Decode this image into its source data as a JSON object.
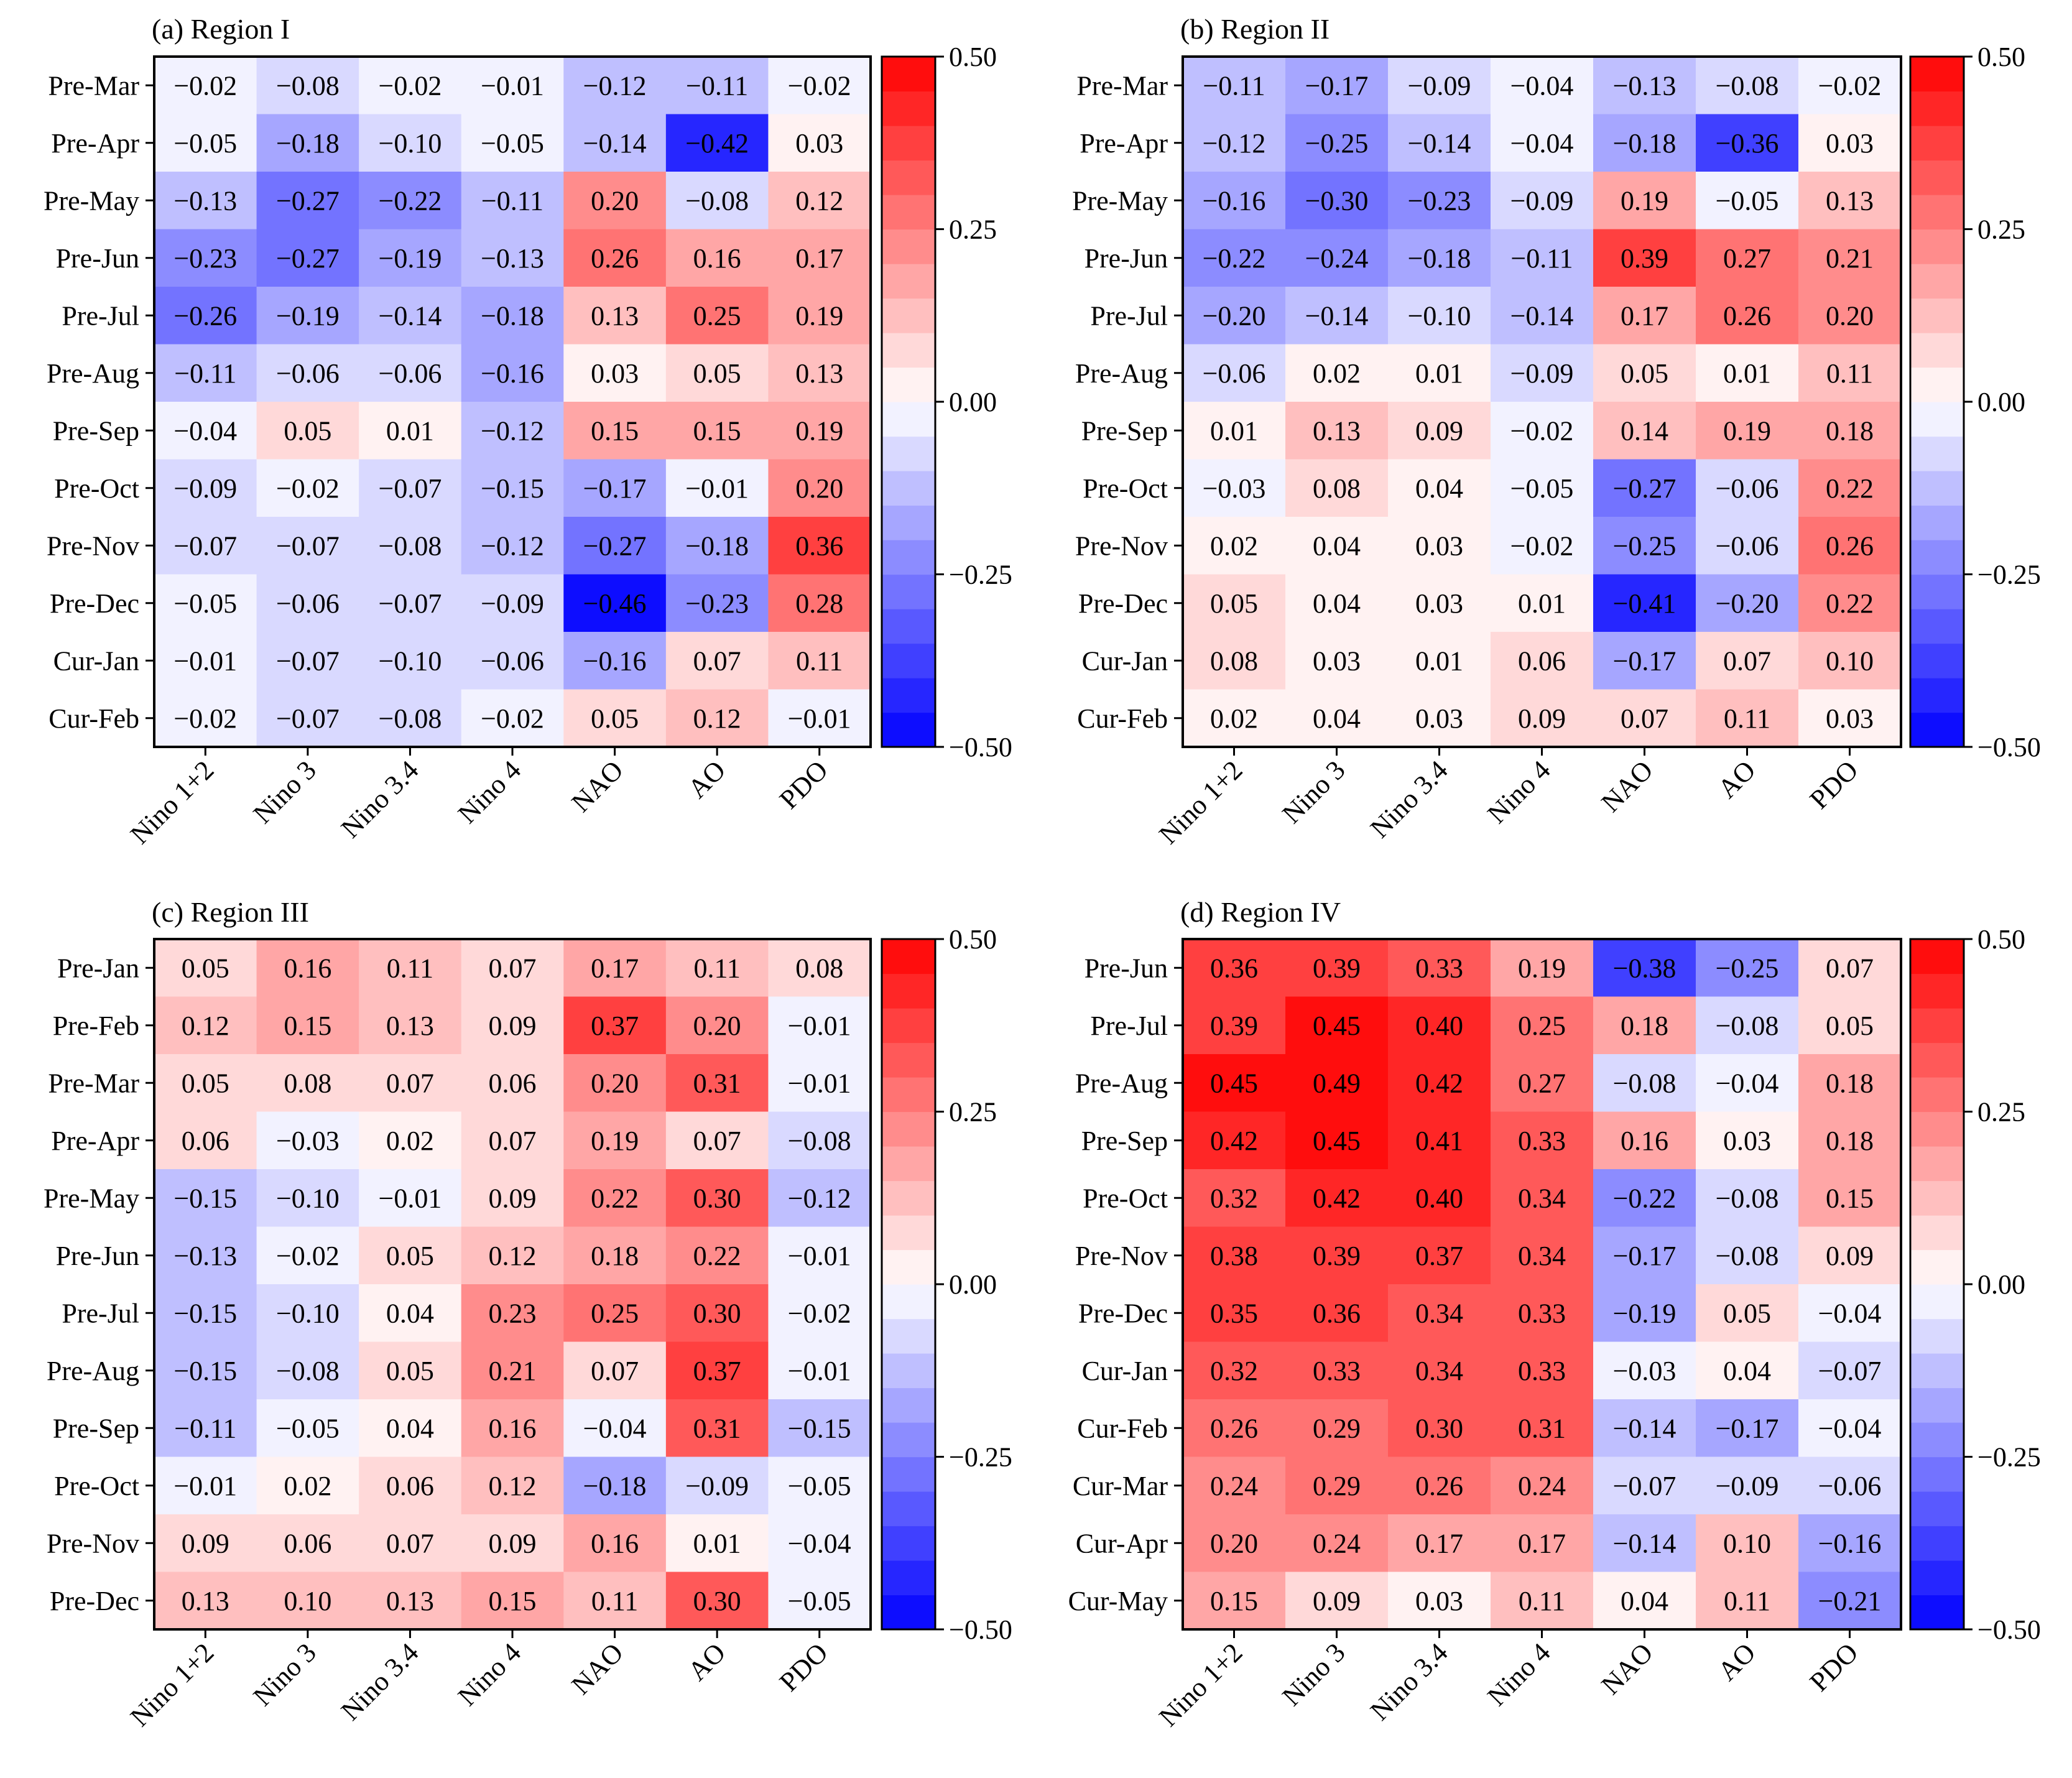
{
  "figure": {
    "columns": [
      "Nino 1+2",
      "Nino 3",
      "Nino 3.4",
      "Nino 4",
      "NAO",
      "AO",
      "PDO"
    ],
    "colorbar": {
      "min": -0.5,
      "max": 0.5,
      "levels": 20,
      "ticks": [
        "0.50",
        "0.25",
        "0.00",
        "−0.25",
        "−0.50"
      ]
    }
  },
  "chart_data": [
    {
      "type": "heatmap",
      "title": "(a) Region I",
      "rows": [
        "Pre-Mar",
        "Pre-Apr",
        "Pre-May",
        "Pre-Jun",
        "Pre-Jul",
        "Pre-Aug",
        "Pre-Sep",
        "Pre-Oct",
        "Pre-Nov",
        "Pre-Dec",
        "Cur-Jan",
        "Cur-Feb"
      ],
      "columns": [
        "Nino 1+2",
        "Nino 3",
        "Nino 3.4",
        "Nino 4",
        "NAO",
        "AO",
        "PDO"
      ],
      "values": [
        [
          -0.02,
          -0.08,
          -0.02,
          -0.01,
          -0.12,
          -0.11,
          -0.02
        ],
        [
          -0.05,
          -0.18,
          -0.1,
          -0.05,
          -0.14,
          -0.42,
          0.03
        ],
        [
          -0.13,
          -0.27,
          -0.22,
          -0.11,
          0.2,
          -0.08,
          0.12
        ],
        [
          -0.23,
          -0.27,
          -0.19,
          -0.13,
          0.26,
          0.16,
          0.17
        ],
        [
          -0.26,
          -0.19,
          -0.14,
          -0.18,
          0.13,
          0.25,
          0.19
        ],
        [
          -0.11,
          -0.06,
          -0.06,
          -0.16,
          0.03,
          0.05,
          0.13
        ],
        [
          -0.04,
          0.05,
          0.01,
          -0.12,
          0.15,
          0.15,
          0.19
        ],
        [
          -0.09,
          -0.02,
          -0.07,
          -0.15,
          -0.17,
          -0.01,
          0.2
        ],
        [
          -0.07,
          -0.07,
          -0.08,
          -0.12,
          -0.27,
          -0.18,
          0.36
        ],
        [
          -0.05,
          -0.06,
          -0.07,
          -0.09,
          -0.46,
          -0.23,
          0.28
        ],
        [
          -0.01,
          -0.07,
          -0.1,
          -0.06,
          -0.16,
          0.07,
          0.11
        ],
        [
          -0.02,
          -0.07,
          -0.08,
          -0.02,
          0.05,
          0.12,
          -0.01
        ]
      ]
    },
    {
      "type": "heatmap",
      "title": "(b) Region II",
      "rows": [
        "Pre-Mar",
        "Pre-Apr",
        "Pre-May",
        "Pre-Jun",
        "Pre-Jul",
        "Pre-Aug",
        "Pre-Sep",
        "Pre-Oct",
        "Pre-Nov",
        "Pre-Dec",
        "Cur-Jan",
        "Cur-Feb"
      ],
      "columns": [
        "Nino 1+2",
        "Nino 3",
        "Nino 3.4",
        "Nino 4",
        "NAO",
        "AO",
        "PDO"
      ],
      "values": [
        [
          -0.11,
          -0.17,
          -0.09,
          -0.04,
          -0.13,
          -0.08,
          -0.02
        ],
        [
          -0.12,
          -0.25,
          -0.14,
          -0.04,
          -0.18,
          -0.36,
          0.03
        ],
        [
          -0.16,
          -0.3,
          -0.23,
          -0.09,
          0.19,
          -0.05,
          0.13
        ],
        [
          -0.22,
          -0.24,
          -0.18,
          -0.11,
          0.39,
          0.27,
          0.21
        ],
        [
          -0.2,
          -0.14,
          -0.1,
          -0.14,
          0.17,
          0.26,
          0.2
        ],
        [
          -0.06,
          0.02,
          0.01,
          -0.09,
          0.05,
          0.01,
          0.11
        ],
        [
          0.01,
          0.13,
          0.09,
          -0.02,
          0.14,
          0.19,
          0.18
        ],
        [
          -0.03,
          0.08,
          0.04,
          -0.05,
          -0.27,
          -0.06,
          0.22
        ],
        [
          0.02,
          0.04,
          0.03,
          -0.02,
          -0.25,
          -0.06,
          0.26
        ],
        [
          0.05,
          0.04,
          0.03,
          0.01,
          -0.41,
          -0.2,
          0.22
        ],
        [
          0.08,
          0.03,
          0.01,
          0.06,
          -0.17,
          0.07,
          0.1
        ],
        [
          0.02,
          0.04,
          0.03,
          0.09,
          0.07,
          0.11,
          0.03
        ]
      ]
    },
    {
      "type": "heatmap",
      "title": "(c) Region III",
      "rows": [
        "Pre-Jan",
        "Pre-Feb",
        "Pre-Mar",
        "Pre-Apr",
        "Pre-May",
        "Pre-Jun",
        "Pre-Jul",
        "Pre-Aug",
        "Pre-Sep",
        "Pre-Oct",
        "Pre-Nov",
        "Pre-Dec"
      ],
      "columns": [
        "Nino 1+2",
        "Nino 3",
        "Nino 3.4",
        "Nino 4",
        "NAO",
        "AO",
        "PDO"
      ],
      "values": [
        [
          0.05,
          0.16,
          0.11,
          0.07,
          0.17,
          0.11,
          0.08
        ],
        [
          0.12,
          0.15,
          0.13,
          0.09,
          0.37,
          0.2,
          -0.01
        ],
        [
          0.05,
          0.08,
          0.07,
          0.06,
          0.2,
          0.31,
          -0.01
        ],
        [
          0.06,
          -0.03,
          0.02,
          0.07,
          0.19,
          0.07,
          -0.08
        ],
        [
          -0.15,
          -0.1,
          -0.01,
          0.09,
          0.22,
          0.3,
          -0.12
        ],
        [
          -0.13,
          -0.02,
          0.05,
          0.12,
          0.18,
          0.22,
          -0.01
        ],
        [
          -0.15,
          -0.1,
          0.04,
          0.23,
          0.25,
          0.3,
          -0.02
        ],
        [
          -0.15,
          -0.08,
          0.05,
          0.21,
          0.07,
          0.37,
          -0.01
        ],
        [
          -0.11,
          -0.05,
          0.04,
          0.16,
          -0.04,
          0.31,
          -0.15
        ],
        [
          -0.01,
          0.02,
          0.06,
          0.12,
          -0.18,
          -0.09,
          -0.05
        ],
        [
          0.09,
          0.06,
          0.07,
          0.09,
          0.16,
          0.01,
          -0.04
        ],
        [
          0.13,
          0.1,
          0.13,
          0.15,
          0.11,
          0.3,
          -0.05
        ]
      ]
    },
    {
      "type": "heatmap",
      "title": "(d) Region IV",
      "rows": [
        "Pre-Jun",
        "Pre-Jul",
        "Pre-Aug",
        "Pre-Sep",
        "Pre-Oct",
        "Pre-Nov",
        "Pre-Dec",
        "Cur-Jan",
        "Cur-Feb",
        "Cur-Mar",
        "Cur-Apr",
        "Cur-May"
      ],
      "columns": [
        "Nino 1+2",
        "Nino 3",
        "Nino 3.4",
        "Nino 4",
        "NAO",
        "AO",
        "PDO"
      ],
      "values": [
        [
          0.36,
          0.39,
          0.33,
          0.19,
          -0.38,
          -0.25,
          0.07
        ],
        [
          0.39,
          0.45,
          0.4,
          0.25,
          0.18,
          -0.08,
          0.05
        ],
        [
          0.45,
          0.49,
          0.42,
          0.27,
          -0.08,
          -0.04,
          0.18
        ],
        [
          0.42,
          0.45,
          0.41,
          0.33,
          0.16,
          0.03,
          0.18
        ],
        [
          0.32,
          0.42,
          0.4,
          0.34,
          -0.22,
          -0.08,
          0.15
        ],
        [
          0.38,
          0.39,
          0.37,
          0.34,
          -0.17,
          -0.08,
          0.09
        ],
        [
          0.35,
          0.36,
          0.34,
          0.33,
          -0.19,
          0.05,
          -0.04
        ],
        [
          0.32,
          0.33,
          0.34,
          0.33,
          -0.03,
          0.04,
          -0.07
        ],
        [
          0.26,
          0.29,
          0.3,
          0.31,
          -0.14,
          -0.17,
          -0.04
        ],
        [
          0.24,
          0.29,
          0.26,
          0.24,
          -0.07,
          -0.09,
          -0.06
        ],
        [
          0.2,
          0.24,
          0.17,
          0.17,
          -0.14,
          0.1,
          -0.16
        ],
        [
          0.15,
          0.09,
          0.03,
          0.11,
          0.04,
          0.11,
          -0.21
        ]
      ]
    }
  ]
}
